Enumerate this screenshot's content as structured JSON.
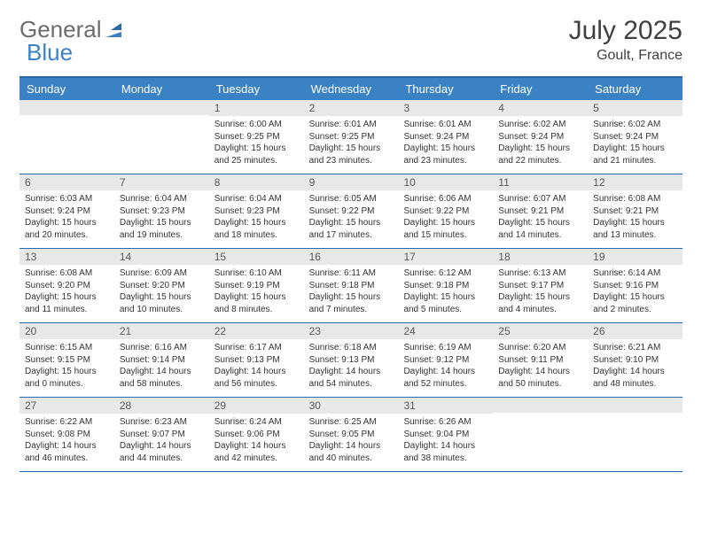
{
  "logo": {
    "word1": "General",
    "word2": "Blue",
    "icon_color": "#3b82c4"
  },
  "title": "July 2025",
  "location": "Goult, France",
  "colors": {
    "header_bar": "#3b82c4",
    "border": "#2b6aa8",
    "daynum_bg": "#e8e8e8",
    "text": "#333333"
  },
  "day_names": [
    "Sunday",
    "Monday",
    "Tuesday",
    "Wednesday",
    "Thursday",
    "Friday",
    "Saturday"
  ],
  "weeks": [
    [
      {
        "n": "",
        "sr": "",
        "ss": "",
        "dl": ""
      },
      {
        "n": "",
        "sr": "",
        "ss": "",
        "dl": ""
      },
      {
        "n": "1",
        "sr": "Sunrise: 6:00 AM",
        "ss": "Sunset: 9:25 PM",
        "dl": "Daylight: 15 hours and 25 minutes."
      },
      {
        "n": "2",
        "sr": "Sunrise: 6:01 AM",
        "ss": "Sunset: 9:25 PM",
        "dl": "Daylight: 15 hours and 23 minutes."
      },
      {
        "n": "3",
        "sr": "Sunrise: 6:01 AM",
        "ss": "Sunset: 9:24 PM",
        "dl": "Daylight: 15 hours and 23 minutes."
      },
      {
        "n": "4",
        "sr": "Sunrise: 6:02 AM",
        "ss": "Sunset: 9:24 PM",
        "dl": "Daylight: 15 hours and 22 minutes."
      },
      {
        "n": "5",
        "sr": "Sunrise: 6:02 AM",
        "ss": "Sunset: 9:24 PM",
        "dl": "Daylight: 15 hours and 21 minutes."
      }
    ],
    [
      {
        "n": "6",
        "sr": "Sunrise: 6:03 AM",
        "ss": "Sunset: 9:24 PM",
        "dl": "Daylight: 15 hours and 20 minutes."
      },
      {
        "n": "7",
        "sr": "Sunrise: 6:04 AM",
        "ss": "Sunset: 9:23 PM",
        "dl": "Daylight: 15 hours and 19 minutes."
      },
      {
        "n": "8",
        "sr": "Sunrise: 6:04 AM",
        "ss": "Sunset: 9:23 PM",
        "dl": "Daylight: 15 hours and 18 minutes."
      },
      {
        "n": "9",
        "sr": "Sunrise: 6:05 AM",
        "ss": "Sunset: 9:22 PM",
        "dl": "Daylight: 15 hours and 17 minutes."
      },
      {
        "n": "10",
        "sr": "Sunrise: 6:06 AM",
        "ss": "Sunset: 9:22 PM",
        "dl": "Daylight: 15 hours and 15 minutes."
      },
      {
        "n": "11",
        "sr": "Sunrise: 6:07 AM",
        "ss": "Sunset: 9:21 PM",
        "dl": "Daylight: 15 hours and 14 minutes."
      },
      {
        "n": "12",
        "sr": "Sunrise: 6:08 AM",
        "ss": "Sunset: 9:21 PM",
        "dl": "Daylight: 15 hours and 13 minutes."
      }
    ],
    [
      {
        "n": "13",
        "sr": "Sunrise: 6:08 AM",
        "ss": "Sunset: 9:20 PM",
        "dl": "Daylight: 15 hours and 11 minutes."
      },
      {
        "n": "14",
        "sr": "Sunrise: 6:09 AM",
        "ss": "Sunset: 9:20 PM",
        "dl": "Daylight: 15 hours and 10 minutes."
      },
      {
        "n": "15",
        "sr": "Sunrise: 6:10 AM",
        "ss": "Sunset: 9:19 PM",
        "dl": "Daylight: 15 hours and 8 minutes."
      },
      {
        "n": "16",
        "sr": "Sunrise: 6:11 AM",
        "ss": "Sunset: 9:18 PM",
        "dl": "Daylight: 15 hours and 7 minutes."
      },
      {
        "n": "17",
        "sr": "Sunrise: 6:12 AM",
        "ss": "Sunset: 9:18 PM",
        "dl": "Daylight: 15 hours and 5 minutes."
      },
      {
        "n": "18",
        "sr": "Sunrise: 6:13 AM",
        "ss": "Sunset: 9:17 PM",
        "dl": "Daylight: 15 hours and 4 minutes."
      },
      {
        "n": "19",
        "sr": "Sunrise: 6:14 AM",
        "ss": "Sunset: 9:16 PM",
        "dl": "Daylight: 15 hours and 2 minutes."
      }
    ],
    [
      {
        "n": "20",
        "sr": "Sunrise: 6:15 AM",
        "ss": "Sunset: 9:15 PM",
        "dl": "Daylight: 15 hours and 0 minutes."
      },
      {
        "n": "21",
        "sr": "Sunrise: 6:16 AM",
        "ss": "Sunset: 9:14 PM",
        "dl": "Daylight: 14 hours and 58 minutes."
      },
      {
        "n": "22",
        "sr": "Sunrise: 6:17 AM",
        "ss": "Sunset: 9:13 PM",
        "dl": "Daylight: 14 hours and 56 minutes."
      },
      {
        "n": "23",
        "sr": "Sunrise: 6:18 AM",
        "ss": "Sunset: 9:13 PM",
        "dl": "Daylight: 14 hours and 54 minutes."
      },
      {
        "n": "24",
        "sr": "Sunrise: 6:19 AM",
        "ss": "Sunset: 9:12 PM",
        "dl": "Daylight: 14 hours and 52 minutes."
      },
      {
        "n": "25",
        "sr": "Sunrise: 6:20 AM",
        "ss": "Sunset: 9:11 PM",
        "dl": "Daylight: 14 hours and 50 minutes."
      },
      {
        "n": "26",
        "sr": "Sunrise: 6:21 AM",
        "ss": "Sunset: 9:10 PM",
        "dl": "Daylight: 14 hours and 48 minutes."
      }
    ],
    [
      {
        "n": "27",
        "sr": "Sunrise: 6:22 AM",
        "ss": "Sunset: 9:08 PM",
        "dl": "Daylight: 14 hours and 46 minutes."
      },
      {
        "n": "28",
        "sr": "Sunrise: 6:23 AM",
        "ss": "Sunset: 9:07 PM",
        "dl": "Daylight: 14 hours and 44 minutes."
      },
      {
        "n": "29",
        "sr": "Sunrise: 6:24 AM",
        "ss": "Sunset: 9:06 PM",
        "dl": "Daylight: 14 hours and 42 minutes."
      },
      {
        "n": "30",
        "sr": "Sunrise: 6:25 AM",
        "ss": "Sunset: 9:05 PM",
        "dl": "Daylight: 14 hours and 40 minutes."
      },
      {
        "n": "31",
        "sr": "Sunrise: 6:26 AM",
        "ss": "Sunset: 9:04 PM",
        "dl": "Daylight: 14 hours and 38 minutes."
      },
      {
        "n": "",
        "sr": "",
        "ss": "",
        "dl": ""
      },
      {
        "n": "",
        "sr": "",
        "ss": "",
        "dl": ""
      }
    ]
  ]
}
